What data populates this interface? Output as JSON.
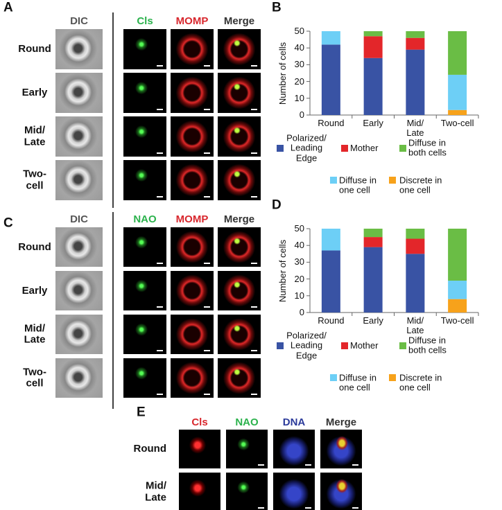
{
  "panels": {
    "A": {
      "letter": "A",
      "headers": [
        "DIC",
        "Cls",
        "MOMP",
        "Merge"
      ],
      "rows": [
        "Round",
        "Early",
        "Mid/\nLate",
        "Two-\ncell"
      ]
    },
    "C": {
      "letter": "C",
      "headers": [
        "DIC",
        "NAO",
        "MOMP",
        "Merge"
      ],
      "rows": [
        "Round",
        "Early",
        "Mid/\nLate",
        "Two-\ncell"
      ]
    },
    "E": {
      "letter": "E",
      "headers": [
        "Cls",
        "NAO",
        "DNA",
        "Merge"
      ],
      "rows": [
        "Round",
        "Mid/\nLate"
      ]
    }
  },
  "chart_data": [
    {
      "type": "bar",
      "stacked": true,
      "panel_label": "B",
      "y_label": "Number of cells",
      "categories": [
        "Round",
        "Early",
        "Mid/\nLate",
        "Two-cell"
      ],
      "series": [
        {
          "name": "Discrete in\none cell",
          "color": "#f7a21b",
          "values": [
            0,
            0,
            0,
            3
          ]
        },
        {
          "name": "Polarized/\nLeading\nEdge",
          "color": "#3953a4",
          "values": [
            42,
            34,
            39,
            0
          ]
        },
        {
          "name": "Mother",
          "color": "#e3262a",
          "values": [
            0,
            13,
            7,
            0
          ]
        },
        {
          "name": "Diffuse in\none cell",
          "color": "#6dcff6",
          "values": [
            8,
            0,
            0,
            21
          ]
        },
        {
          "name": "Diffuse in\nboth cells",
          "color": "#6abd45",
          "values": [
            0,
            3,
            4,
            26
          ]
        }
      ],
      "ylim": [
        0,
        50
      ],
      "yticks": [
        0,
        10,
        20,
        30,
        40,
        50
      ],
      "grid": false
    },
    {
      "type": "bar",
      "stacked": true,
      "panel_label": "D",
      "y_label": "Number of cells",
      "categories": [
        "Round",
        "Early",
        "Mid/\nLate",
        "Two-cell"
      ],
      "series": [
        {
          "name": "Discrete in\none cell",
          "color": "#f7a21b",
          "values": [
            0,
            0,
            0,
            8
          ]
        },
        {
          "name": "Polarized/\nLeading\nEdge",
          "color": "#3953a4",
          "values": [
            37,
            39,
            35,
            0
          ]
        },
        {
          "name": "Mother",
          "color": "#e3262a",
          "values": [
            0,
            6,
            9,
            0
          ]
        },
        {
          "name": "Diffuse in\none cell",
          "color": "#6dcff6",
          "values": [
            13,
            0,
            0,
            11
          ]
        },
        {
          "name": "Diffuse in\nboth cells",
          "color": "#6abd45",
          "values": [
            0,
            5,
            6,
            31
          ]
        }
      ],
      "ylim": [
        0,
        50
      ],
      "yticks": [
        0,
        10,
        20,
        30,
        40,
        50
      ],
      "grid": false
    }
  ]
}
